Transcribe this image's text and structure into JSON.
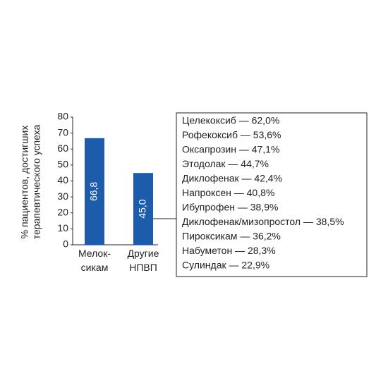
{
  "chart_data": {
    "type": "bar",
    "y_label": [
      "% пациентов, достигших",
      "терапевтического успеха"
    ],
    "categories": [
      "Мелок-\nсикам",
      "Другие\nНПВП"
    ],
    "values": [
      66.8,
      45.0
    ],
    "value_labels": [
      "66,8",
      "45,0"
    ],
    "color": "#1d5cab",
    "ylim": [
      0,
      80
    ],
    "yticks": [
      0,
      10,
      20,
      30,
      40,
      50,
      60,
      70,
      80
    ],
    "annotations": [
      "Целекоксиб — 62,0%",
      "Рофекоксиб — 53,6%",
      "Оксапрозин — 47,1%",
      "Этодолак — 44,7%",
      "Диклофенак — 42,4%",
      "Напроксен — 40,8%",
      "Ибупрофен — 38,9%",
      "Диклофенак/мизопростол — 38,5%",
      "Пироксикам — 36,2%",
      "Набуметон — 28,3%",
      "Сулиндак — 22,9%"
    ]
  }
}
